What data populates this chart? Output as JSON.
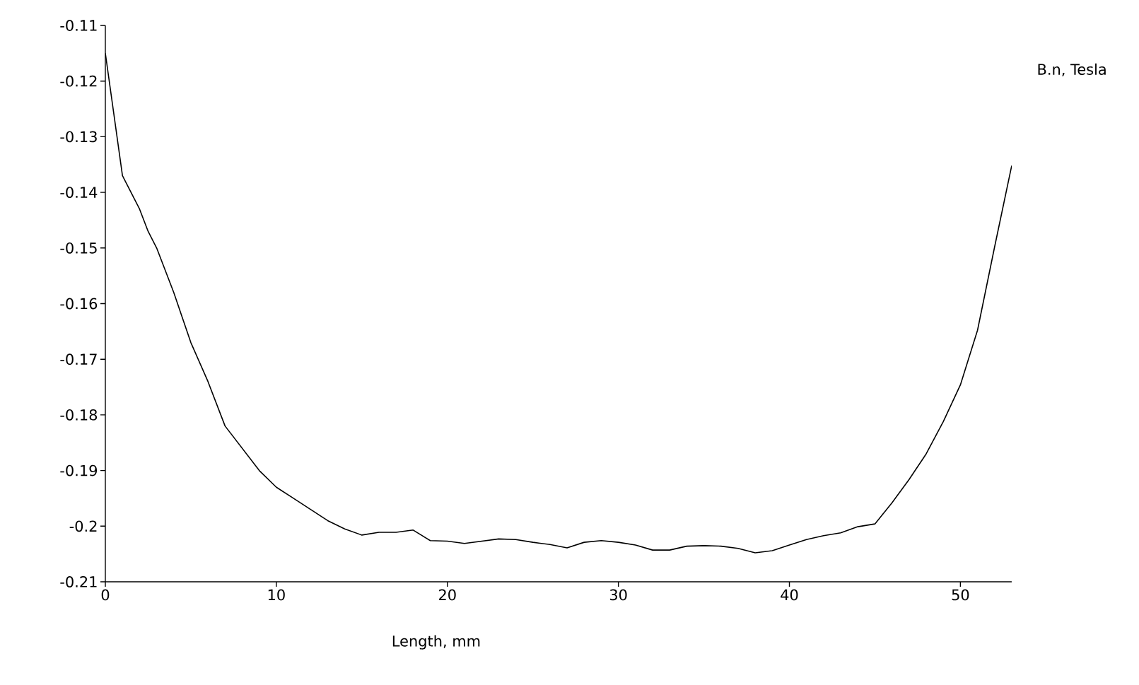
{
  "chart_data": {
    "type": "line",
    "xlabel": "Length, mm",
    "ylabel": "B.n, Tesla",
    "x": [
      0,
      0.5,
      1,
      2,
      2.5,
      3,
      4,
      5,
      6,
      7,
      8,
      9,
      10,
      11,
      12,
      13,
      14,
      15,
      16,
      17,
      18,
      19,
      20,
      21,
      22,
      23,
      24,
      25,
      26,
      27,
      28,
      29,
      30,
      31,
      32,
      33,
      34,
      35,
      36,
      37,
      38,
      39,
      40,
      41,
      42,
      43,
      44,
      45,
      46,
      47,
      48,
      49,
      50,
      51,
      52,
      53
    ],
    "series": [
      {
        "color": "#000000",
        "values": [
          -0.115,
          -0.126,
          -0.137,
          -0.143,
          -0.147,
          -0.15,
          -0.158,
          -0.167,
          -0.174,
          -0.182,
          -0.186,
          -0.19,
          -0.193,
          -0.195,
          -0.197,
          -0.199,
          -0.2005,
          -0.2016,
          -0.2011,
          -0.2011,
          -0.2007,
          -0.2026,
          -0.2027,
          -0.2031,
          -0.2027,
          -0.2023,
          -0.2024,
          -0.2029,
          -0.2033,
          -0.2039,
          -0.2029,
          -0.2026,
          -0.2029,
          -0.2034,
          -0.2043,
          -0.2043,
          -0.2036,
          -0.2035,
          -0.2036,
          -0.204,
          -0.2048,
          -0.2044,
          -0.2034,
          -0.2024,
          -0.2017,
          -0.2012,
          -0.2001,
          -0.1996,
          -0.1958,
          -0.1916,
          -0.187,
          -0.1812,
          -0.1746,
          -0.1648,
          -0.1498,
          -0.1352
        ]
      }
    ],
    "xlim": [
      0,
      53
    ],
    "ylim": [
      -0.21,
      -0.11
    ],
    "xticks": [
      0,
      10,
      20,
      30,
      40,
      50
    ],
    "yticks": [
      -0.21,
      -0.2,
      -0.19,
      -0.18,
      -0.17,
      -0.16,
      -0.15,
      -0.14,
      -0.13,
      -0.12,
      -0.11
    ],
    "grid": false,
    "marker": "none",
    "line_style": "solid"
  }
}
